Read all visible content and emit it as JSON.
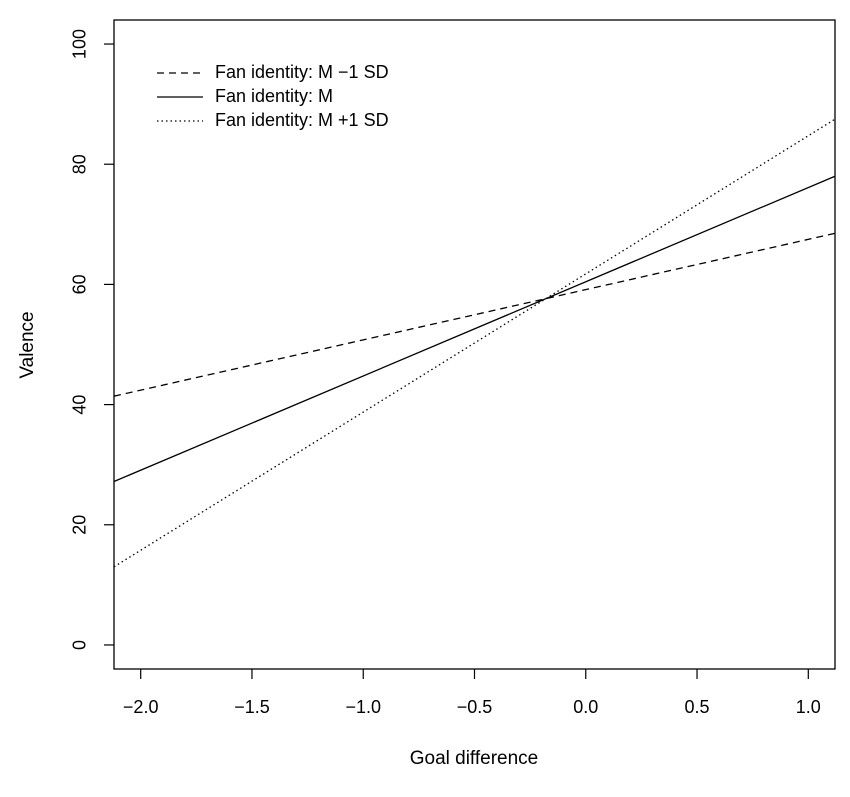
{
  "chart_data": {
    "type": "line",
    "title": "",
    "xlabel": "Goal difference",
    "ylabel": "Valence",
    "xlim": [
      -2.12,
      1.12
    ],
    "ylim": [
      -4,
      104
    ],
    "x_ticks": [
      -2.0,
      -1.5,
      -1.0,
      -0.5,
      0.0,
      0.5,
      1.0
    ],
    "x_tick_labels": [
      "−2.0",
      "−1.5",
      "−1.0",
      "−0.5",
      "0.0",
      "0.5",
      "1.0"
    ],
    "y_ticks": [
      0,
      20,
      40,
      60,
      80,
      100
    ],
    "y_tick_labels": [
      "0",
      "20",
      "40",
      "60",
      "80",
      "100"
    ],
    "grid": false,
    "legend_position": "top-left",
    "series": [
      {
        "name": "Fan identity: M −1 SD",
        "line_style": "dashed",
        "x": [
          -2.12,
          1.12
        ],
        "y": [
          41.4,
          68.5
        ]
      },
      {
        "name": "Fan identity: M",
        "line_style": "solid",
        "x": [
          -2.12,
          1.12
        ],
        "y": [
          27.2,
          78.0
        ]
      },
      {
        "name": "Fan identity: M +1 SD",
        "line_style": "dotted",
        "x": [
          -2.12,
          1.12
        ],
        "y": [
          13.0,
          87.5
        ]
      }
    ]
  }
}
